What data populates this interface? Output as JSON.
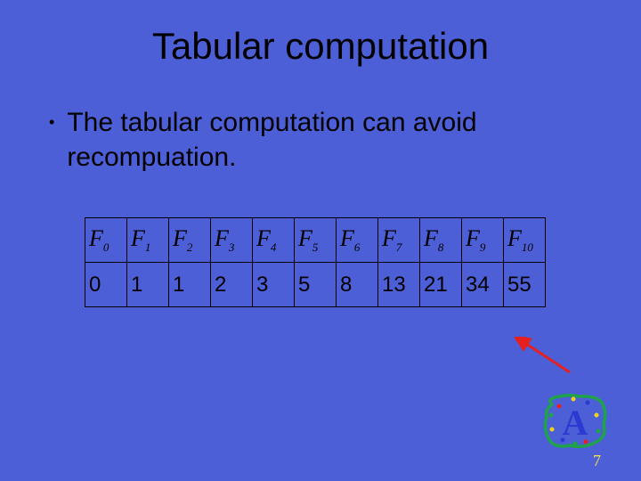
{
  "title": "Tabular computation",
  "bullet_text": "The tabular computation can avoid recompuation.",
  "table": {
    "headers": [
      {
        "F": "F",
        "sub": "0"
      },
      {
        "F": "F",
        "sub": "1"
      },
      {
        "F": "F",
        "sub": "2"
      },
      {
        "F": "F",
        "sub": "3"
      },
      {
        "F": "F",
        "sub": "4"
      },
      {
        "F": "F",
        "sub": "5"
      },
      {
        "F": "F",
        "sub": "6"
      },
      {
        "F": "F",
        "sub": "7"
      },
      {
        "F": "F",
        "sub": "8"
      },
      {
        "F": "F",
        "sub": "9"
      },
      {
        "F": "F",
        "sub": "10"
      }
    ],
    "values": [
      "0",
      "1",
      "1",
      "2",
      "3",
      "5",
      "8",
      "13",
      "21",
      "34",
      "55"
    ]
  },
  "arrow": {
    "color": "#e62020",
    "stroke_width": 3
  },
  "badge": {
    "border_color": "#1fa34a",
    "letter_color": "#2b3bd1",
    "dot_colors": [
      "#e62020",
      "#f0d21a",
      "#2b3bd1",
      "#1fa34a"
    ],
    "letter": "A"
  },
  "page_number": "7",
  "colors": {
    "background": "#4d5fd6",
    "text": "#000000",
    "pagenum": "#f2e24b"
  }
}
